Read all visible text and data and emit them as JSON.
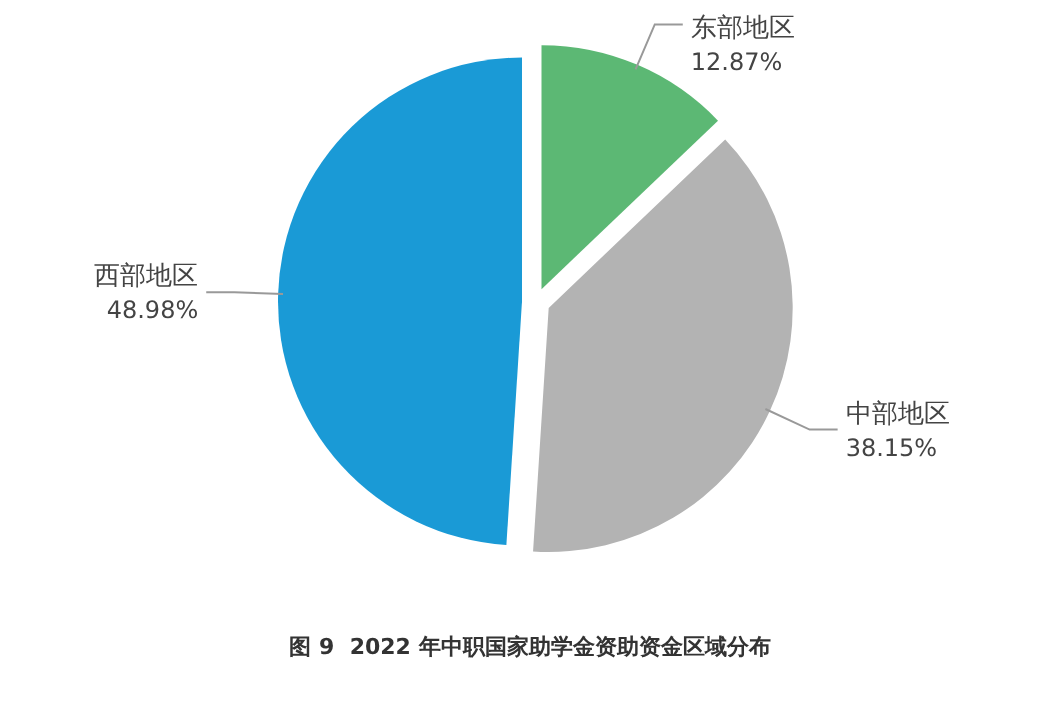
{
  "chart_data": {
    "type": "pie",
    "title": "图 9  2022 年中职国家助学金资助资金区域分布",
    "categories": [
      "东部地区",
      "中部地区",
      "西部地区"
    ],
    "values": [
      12.87,
      38.15,
      48.98
    ],
    "value_labels": [
      "12.87%",
      "38.15%",
      "48.98%"
    ],
    "colors": [
      "#5cb874",
      "#b3b3b3",
      "#1a9ad6"
    ],
    "legend": false
  }
}
